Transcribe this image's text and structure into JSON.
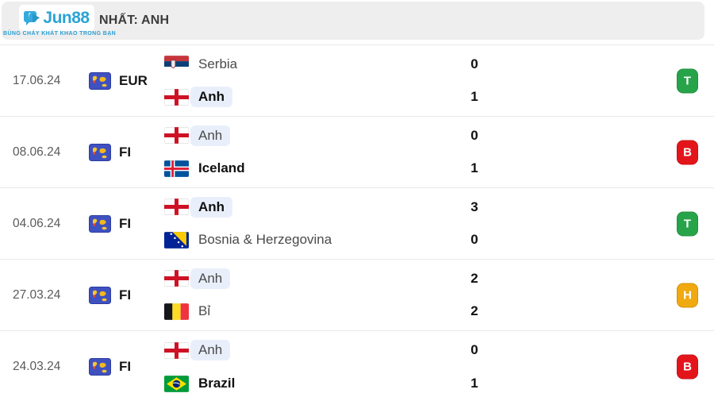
{
  "brand": {
    "name": "Jun88",
    "tagline": "BÙNG CHÁY KHÁT KHAO TRONG BẠN"
  },
  "header": {
    "title": "NHẤT: ANH"
  },
  "colors": {
    "accent_blue": "#2ba3d6",
    "header_bg": "#eeeeee",
    "team_highlight": "#e9effa",
    "result": {
      "win": "#27a449",
      "loss": "#e3151b",
      "draw": "#f0a90f"
    }
  },
  "matches": [
    {
      "date": "17.06.24",
      "competition": "EUR",
      "competition_icon": "world-map-icon",
      "teams": [
        {
          "name": "Serbia",
          "flag": "serbia-flag-icon",
          "score": "0",
          "winner": false,
          "highlighted": false
        },
        {
          "name": "Anh",
          "flag": "england-flag-icon",
          "score": "1",
          "winner": true,
          "highlighted": true
        }
      ],
      "result": {
        "label": "T",
        "status": "win"
      }
    },
    {
      "date": "08.06.24",
      "competition": "FI",
      "competition_icon": "world-map-icon",
      "teams": [
        {
          "name": "Anh",
          "flag": "england-flag-icon",
          "score": "0",
          "winner": false,
          "highlighted": true
        },
        {
          "name": "Iceland",
          "flag": "iceland-flag-icon",
          "score": "1",
          "winner": true,
          "highlighted": false
        }
      ],
      "result": {
        "label": "B",
        "status": "loss"
      }
    },
    {
      "date": "04.06.24",
      "competition": "FI",
      "competition_icon": "world-map-icon",
      "teams": [
        {
          "name": "Anh",
          "flag": "england-flag-icon",
          "score": "3",
          "winner": true,
          "highlighted": true
        },
        {
          "name": "Bosnia & Herzegovina",
          "flag": "bosnia-flag-icon",
          "score": "0",
          "winner": false,
          "highlighted": false
        }
      ],
      "result": {
        "label": "T",
        "status": "win"
      }
    },
    {
      "date": "27.03.24",
      "competition": "FI",
      "competition_icon": "world-map-icon",
      "teams": [
        {
          "name": "Anh",
          "flag": "england-flag-icon",
          "score": "2",
          "winner": false,
          "highlighted": true
        },
        {
          "name": "Bỉ",
          "flag": "belgium-flag-icon",
          "score": "2",
          "winner": false,
          "highlighted": false
        }
      ],
      "result": {
        "label": "H",
        "status": "draw"
      }
    },
    {
      "date": "24.03.24",
      "competition": "FI",
      "competition_icon": "world-map-icon",
      "teams": [
        {
          "name": "Anh",
          "flag": "england-flag-icon",
          "score": "0",
          "winner": false,
          "highlighted": true
        },
        {
          "name": "Brazil",
          "flag": "brazil-flag-icon",
          "score": "1",
          "winner": true,
          "highlighted": false
        }
      ],
      "result": {
        "label": "B",
        "status": "loss"
      }
    }
  ]
}
